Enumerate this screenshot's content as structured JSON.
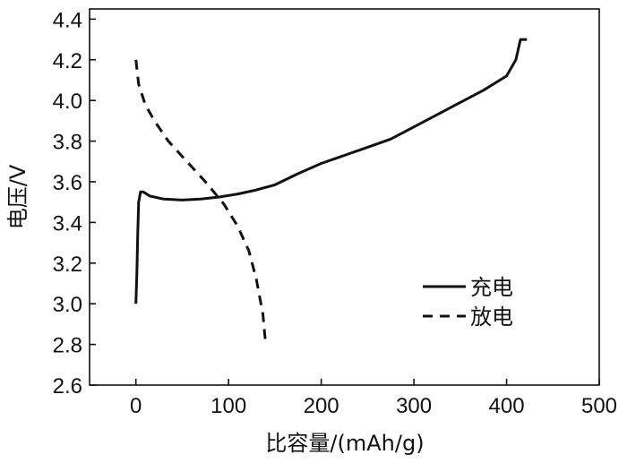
{
  "chart_data": {
    "type": "line",
    "xlabel": "比容量/(mAh/g)",
    "ylabel": "电压/V",
    "xlim": [
      -50,
      500
    ],
    "ylim": [
      2.6,
      4.45
    ],
    "xticks": [
      "0",
      "100",
      "200",
      "300",
      "400",
      "500"
    ],
    "yticks": [
      "2.6",
      "2.8",
      "3.0",
      "3.2",
      "3.4",
      "3.6",
      "3.8",
      "4.0",
      "4.2",
      "4.4"
    ],
    "legend_position": "bottom-right",
    "grid": false,
    "series": [
      {
        "name": "充电",
        "style": "solid",
        "color": "#111111",
        "points": [
          [
            0,
            3.0
          ],
          [
            1,
            3.15
          ],
          [
            2,
            3.35
          ],
          [
            3,
            3.5
          ],
          [
            5,
            3.55
          ],
          [
            8,
            3.55
          ],
          [
            15,
            3.53
          ],
          [
            30,
            3.515
          ],
          [
            50,
            3.51
          ],
          [
            70,
            3.515
          ],
          [
            90,
            3.525
          ],
          [
            110,
            3.54
          ],
          [
            130,
            3.56
          ],
          [
            150,
            3.585
          ],
          [
            175,
            3.64
          ],
          [
            200,
            3.69
          ],
          [
            225,
            3.73
          ],
          [
            250,
            3.77
          ],
          [
            275,
            3.81
          ],
          [
            300,
            3.87
          ],
          [
            325,
            3.93
          ],
          [
            350,
            3.99
          ],
          [
            375,
            4.05
          ],
          [
            400,
            4.12
          ],
          [
            410,
            4.2
          ],
          [
            415,
            4.3
          ],
          [
            422,
            4.3
          ]
        ]
      },
      {
        "name": "放电",
        "style": "dashed",
        "color": "#111111",
        "points": [
          [
            0,
            4.2
          ],
          [
            3,
            4.08
          ],
          [
            10,
            3.98
          ],
          [
            20,
            3.9
          ],
          [
            35,
            3.8
          ],
          [
            55,
            3.7
          ],
          [
            75,
            3.6
          ],
          [
            95,
            3.49
          ],
          [
            110,
            3.38
          ],
          [
            122,
            3.26
          ],
          [
            130,
            3.12
          ],
          [
            137,
            2.95
          ],
          [
            140,
            2.8
          ]
        ]
      }
    ]
  }
}
